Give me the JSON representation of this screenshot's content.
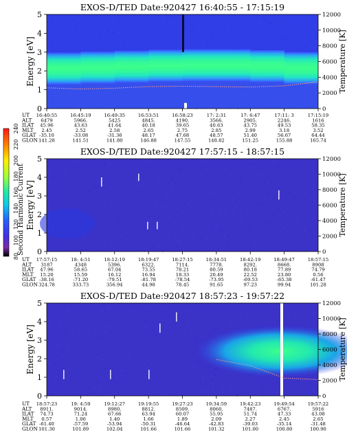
{
  "colorbar": {
    "label": "Second Harmonic Current",
    "ticks": [
      "240",
      "220",
      "200",
      "180",
      "160",
      "140",
      "120",
      "100",
      "80"
    ]
  },
  "eph_row_labels": [
    "UT",
    "ALT",
    "ILAT",
    "MLT",
    "GLAT",
    "GLON"
  ],
  "chart_data": [
    {
      "type": "heatmap",
      "title": "EXOS-D/TED Date:920427 16:40:55 - 17:15:19",
      "ylabel": "Energy [eV]",
      "y2label": "Temperature [K]",
      "ylim": [
        0,
        5
      ],
      "y2lim": [
        0,
        12000
      ],
      "yticks": [
        "0",
        "1",
        "2",
        "3",
        "4",
        "5"
      ],
      "y2ticks": [
        "0",
        "2000",
        "4000",
        "6000",
        "8000",
        "10000",
        "12000"
      ],
      "ephemeris": [
        [
          "16:40:55",
          "16:45:19",
          "16:49:35",
          "16:53:51",
          "16:58:23",
          "17: 2:31",
          "17: 6:47",
          "17:11: 3",
          "17:15:19"
        ],
        [
          "6479",
          "5966.",
          "5425",
          "4845.",
          "4190.",
          "3566.",
          "2905.",
          "2246.",
          "1616"
        ],
        [
          "45.96",
          "43.63",
          "41.64",
          "40.18",
          "39.65",
          "40.63",
          "43.75",
          "49.53",
          "58.35"
        ],
        [
          "2.45",
          "2.52",
          "2.58",
          "2.65",
          "2.75",
          "2.85",
          "2.99",
          "3.18",
          "3.52"
        ],
        [
          "-35.10",
          "-33.08",
          "-31.36",
          "48.17",
          "47.68",
          "48.57",
          "51.40",
          "56.67",
          "64.44"
        ],
        [
          "141.28",
          "141.51",
          "141.80",
          "146.88",
          "147.55",
          "148.82",
          "151.25",
          "155.88",
          "165.74"
        ]
      ],
      "band_center_ev": [
        2.1,
        2.15,
        2.2,
        2.25,
        2.3,
        2.3,
        2.3,
        2.2,
        2.1
      ],
      "temperature_k": [
        2650,
        2500,
        2600,
        2800,
        2850,
        2800,
        2750,
        2900,
        3400
      ]
    },
    {
      "type": "heatmap",
      "title": "EXOS-D/TED Date:920427 17:57:15 - 18:57:15",
      "ylabel": "Energy [eV]",
      "y2label": "Temperature [K]",
      "ylim": [
        0,
        5
      ],
      "y2lim": [
        0,
        12000
      ],
      "yticks": [
        "0",
        "1",
        "2",
        "3",
        "4",
        "5"
      ],
      "y2ticks": [
        "0",
        "2000",
        "4000",
        "6000",
        "8000",
        "10000",
        "12000"
      ],
      "ephemeris": [
        [
          "17:57:15",
          "18: 4:51",
          "18:12:19",
          "18:19:47",
          "18:27:15",
          "18:34:51",
          "18:42:19",
          "18:49:47",
          "18:57:15"
        ],
        [
          "3187",
          "4348",
          "5396.",
          "6322.",
          "7114.",
          "7778.",
          "8292.",
          "8668.",
          "8908"
        ],
        [
          "47.96",
          "58.65",
          "67.04",
          "73.55",
          "78.21",
          "80.59",
          "80.18",
          "77.89",
          "74.79"
        ],
        [
          "15.20",
          "15.59",
          "16.12",
          "16.94",
          "18.33",
          "20.49",
          "22.52",
          "23.80",
          "0.56"
        ],
        [
          "-38.16",
          "-71.20",
          "-79.51",
          "-81.78",
          "-78.54",
          "-73.95",
          "-69.53",
          "-65.38",
          "-61.47"
        ],
        [
          "324.78",
          "333.73",
          "356.94",
          "44.98",
          "78.45",
          "91.65",
          "97.23",
          "99.94",
          "101.28"
        ]
      ]
    },
    {
      "type": "heatmap",
      "title": "EXOS-D/TED Date:920427 18:57:23 - 19:57:22",
      "ylabel": "Energy [eV]",
      "y2label": "Temperature [K]",
      "ylim": [
        0,
        5
      ],
      "y2lim": [
        0,
        12000
      ],
      "yticks": [
        "0",
        "1",
        "2",
        "3",
        "4",
        "5"
      ],
      "y2ticks": [
        "0",
        "2000",
        "4000",
        "6000",
        "8000",
        "10000",
        "12000"
      ],
      "ephemeris": [
        [
          "18:57:23",
          "19: 4:59",
          "19:12:27",
          "19:19:55",
          "19:27:23",
          "19:34:59",
          "19:42:23",
          "19:49:54",
          "19:57:22"
        ],
        [
          "8911.",
          "9014.",
          "8980.",
          "8812.",
          "8509.",
          "8060.",
          "7487.",
          "6767.",
          "5916"
        ],
        [
          "74.73",
          "71.24",
          "67.66",
          "63.94",
          "60.07",
          "55.95",
          "51.74",
          "47.33",
          "43.08"
        ],
        [
          "0.57",
          "1.06",
          "1.40",
          "1.66",
          "1.89",
          "2.09",
          "2.27",
          "2.45",
          "2.65"
        ],
        [
          "-61.40",
          "-57.59",
          "-53.94",
          "-50.31",
          "-46.64",
          "-42.83",
          "-39.03",
          "-35.14",
          "-31.48"
        ],
        [
          "101.30",
          "101.89",
          "102.04",
          "101.66",
          "101.66",
          "101.32",
          "101.00",
          "100.80",
          "100.90"
        ]
      ],
      "temperature_k": [
        null,
        null,
        null,
        null,
        null,
        4700,
        3900,
        2300,
        2100
      ]
    }
  ]
}
